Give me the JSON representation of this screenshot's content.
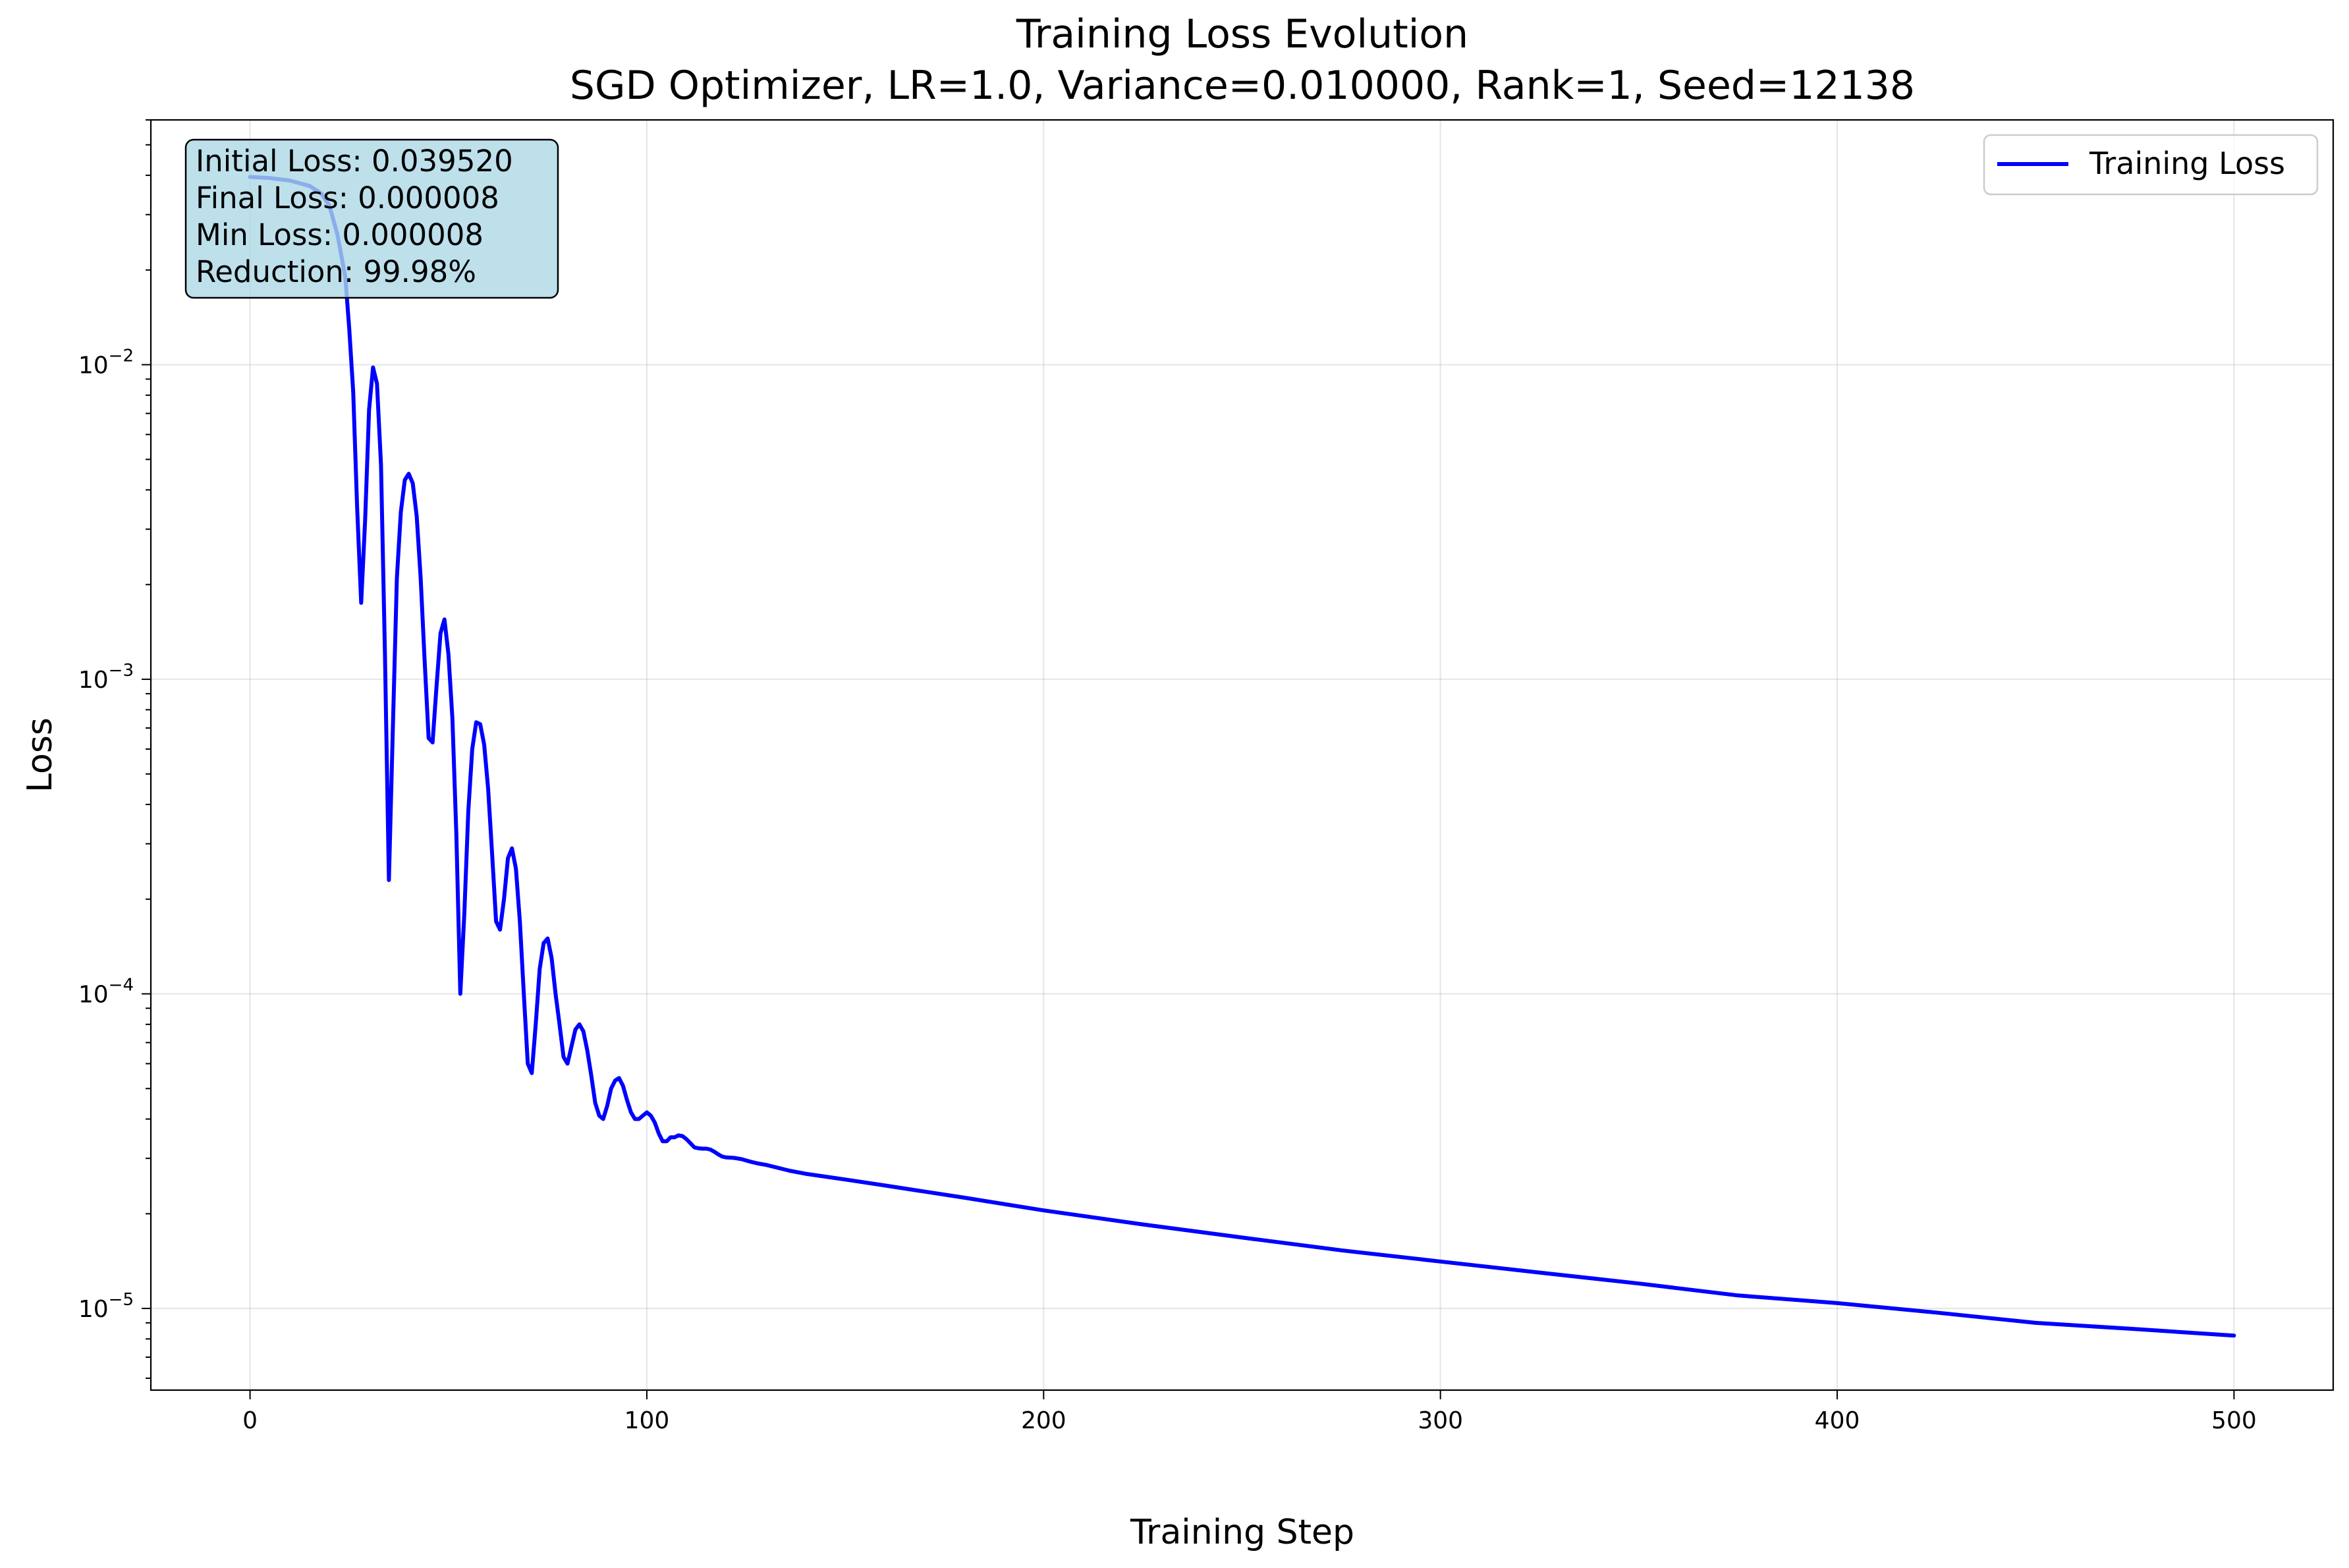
{
  "chart_data": {
    "type": "line",
    "title": "Training Loss Evolution",
    "subtitle": "SGD Optimizer, LR=1.0, Variance=0.010000, Rank=1, Seed=12138",
    "xlabel": "Training Step",
    "ylabel": "Loss",
    "xlim": [
      -25,
      525
    ],
    "ylim": [
      5.5e-06,
      0.06
    ],
    "yscale": "log",
    "grid": true,
    "legend_position": "top-right",
    "x_ticks": [
      0,
      100,
      200,
      300,
      400,
      500
    ],
    "y_ticks": [
      {
        "value": 1e-05,
        "base": "10",
        "exp": "−5"
      },
      {
        "value": 0.0001,
        "base": "10",
        "exp": "−4"
      },
      {
        "value": 0.001,
        "base": "10",
        "exp": "−3"
      },
      {
        "value": 0.01,
        "base": "10",
        "exp": "−2"
      }
    ],
    "series": [
      {
        "name": "Training Loss",
        "color": "#0000ff",
        "x": [
          0,
          5,
          10,
          15,
          18,
          20,
          22,
          24,
          25,
          26,
          27,
          28,
          29,
          30,
          31,
          32,
          33,
          34,
          35,
          36,
          37,
          38,
          39,
          40,
          41,
          42,
          43,
          44,
          45,
          46,
          47,
          48,
          49,
          50,
          51,
          52,
          53,
          54,
          55,
          56,
          57,
          58,
          59,
          60,
          61,
          62,
          63,
          64,
          65,
          66,
          67,
          68,
          69,
          70,
          71,
          72,
          73,
          74,
          75,
          76,
          77,
          78,
          79,
          80,
          81,
          82,
          83,
          84,
          85,
          86,
          87,
          88,
          89,
          90,
          91,
          92,
          93,
          94,
          95,
          96,
          97,
          98,
          99,
          100,
          101,
          102,
          103,
          104,
          105,
          106,
          107,
          108,
          109,
          110,
          111,
          112,
          113,
          114,
          115,
          116,
          117,
          118,
          119,
          120,
          122,
          124,
          126,
          128,
          130,
          133,
          136,
          140,
          150,
          160,
          180,
          200,
          225,
          250,
          275,
          300,
          325,
          350,
          375,
          400,
          425,
          450,
          475,
          500
        ],
        "values": [
          0.03952,
          0.0392,
          0.0385,
          0.037,
          0.035,
          0.032,
          0.026,
          0.019,
          0.013,
          0.0082,
          0.0035,
          0.00175,
          0.0032,
          0.0072,
          0.0098,
          0.0087,
          0.0048,
          0.0012,
          0.00023,
          0.0007,
          0.0021,
          0.0034,
          0.0043,
          0.0045,
          0.0042,
          0.0033,
          0.0021,
          0.00115,
          0.00065,
          0.00063,
          0.00095,
          0.0014,
          0.00155,
          0.0012,
          0.00075,
          0.00032,
          0.0001,
          0.00018,
          0.00038,
          0.0006,
          0.00073,
          0.00072,
          0.00062,
          0.00045,
          0.00028,
          0.00017,
          0.00016,
          0.0002,
          0.00027,
          0.00029,
          0.00025,
          0.00017,
          0.0001,
          6e-05,
          5.6e-05,
          8e-05,
          0.00012,
          0.000145,
          0.00015,
          0.00013,
          0.0001,
          8e-05,
          6.3e-05,
          6e-05,
          6.8e-05,
          7.7e-05,
          8e-05,
          7.6e-05,
          6.6e-05,
          5.5e-05,
          4.5e-05,
          4.1e-05,
          4e-05,
          4.4e-05,
          5e-05,
          5.3e-05,
          5.4e-05,
          5.1e-05,
          4.6e-05,
          4.2e-05,
          4e-05,
          4e-05,
          4.1e-05,
          4.2e-05,
          4.1e-05,
          3.9e-05,
          3.6e-05,
          3.4e-05,
          3.4e-05,
          3.5e-05,
          3.5e-05,
          3.55e-05,
          3.53e-05,
          3.45e-05,
          3.35e-05,
          3.25e-05,
          3.23e-05,
          3.22e-05,
          3.22e-05,
          3.2e-05,
          3.15e-05,
          3.09e-05,
          3.04e-05,
          3.02e-05,
          3.01e-05,
          2.98e-05,
          2.93e-05,
          2.89e-05,
          2.86e-05,
          2.8e-05,
          2.74e-05,
          2.68e-05,
          2.57e-05,
          2.46e-05,
          2.25e-05,
          2.05e-05,
          1.85e-05,
          1.68e-05,
          1.53e-05,
          1.41e-05,
          1.3e-05,
          1.2e-05,
          1.1e-05,
          1.04e-05,
          9.7e-06,
          9e-06,
          8.6e-06,
          8.2e-06
        ]
      }
    ],
    "annotation": {
      "lines": [
        "Initial Loss: 0.039520",
        "Final Loss: 0.000008",
        "Min Loss: 0.000008",
        "Reduction: 99.98%"
      ],
      "background": "#add8e6"
    }
  }
}
